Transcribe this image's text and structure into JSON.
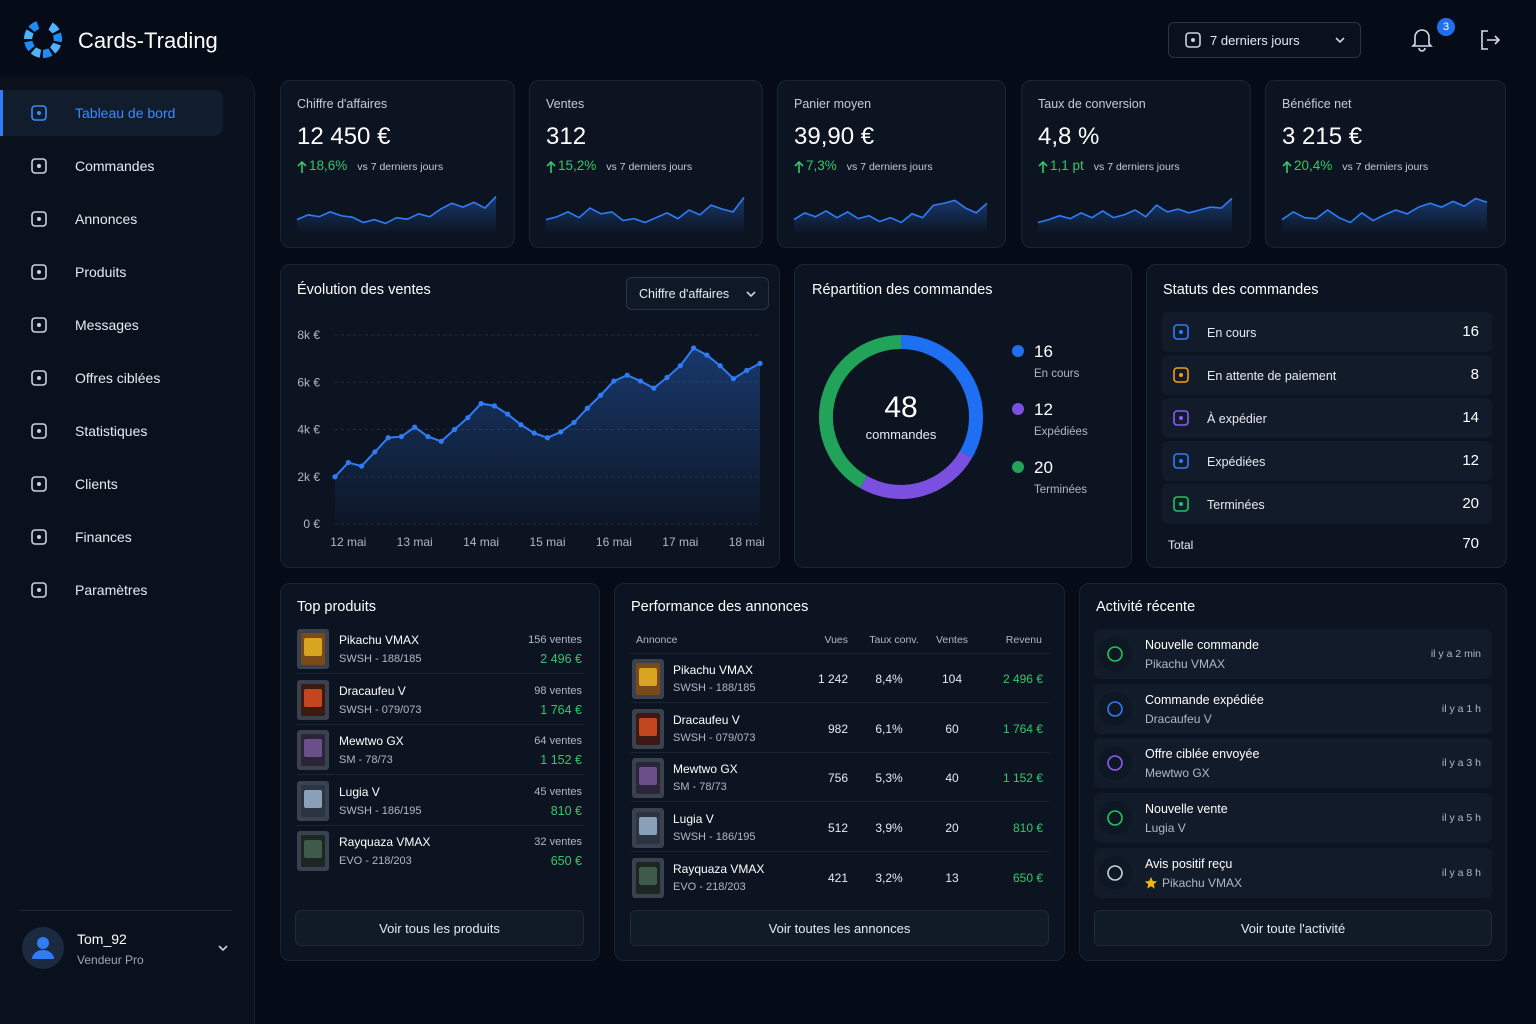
{
  "app": {
    "name": "Cards-Trading"
  },
  "header": {
    "period": "7 derniers jours",
    "notifications": 3
  },
  "nav": [
    "Tableau de bord",
    "Commandes",
    "Annonces",
    "Produits",
    "Messages",
    "Offres ciblées",
    "Statistiques",
    "Clients",
    "Finances",
    "Paramètres"
  ],
  "user": {
    "name": "Tom_92",
    "role": "Vendeur Pro"
  },
  "kpis": [
    {
      "label": "Chiffre d'affaires",
      "value": "12 450 €",
      "change": "18,6%",
      "compare": "vs 7 derniers jours",
      "chart_data": {
        "type": "line",
        "color": "#2f7cf6",
        "ylim": [
          0,
          10
        ],
        "values": [
          3,
          4,
          3.6,
          4.6,
          3.8,
          3.5,
          2.4,
          3,
          2.2,
          3.4,
          3.1,
          4.2,
          3.6,
          5.2,
          6.4,
          5.6,
          6.6,
          5.4,
          7.8
        ]
      }
    },
    {
      "label": "Ventes",
      "value": "312",
      "change": "15,2%",
      "compare": "vs 7 derniers jours",
      "chart_data": {
        "type": "line",
        "color": "#2f7cf6",
        "ylim": [
          0,
          10
        ],
        "values": [
          3,
          3.6,
          4.6,
          3.4,
          5.4,
          4.2,
          4.6,
          2.8,
          3.2,
          2.4,
          3.4,
          4.4,
          3.2,
          5,
          4,
          6,
          5.2,
          4.6,
          7.6
        ]
      }
    },
    {
      "label": "Panier moyen",
      "value": "39,90 €",
      "change": "7,3%",
      "compare": "vs 7 derniers jours",
      "chart_data": {
        "type": "line",
        "color": "#2f7cf6",
        "ylim": [
          0,
          10
        ],
        "values": [
          3,
          4.4,
          3.6,
          4.8,
          3.4,
          4.6,
          3.2,
          3.8,
          2.6,
          3.4,
          2.4,
          4.2,
          3.4,
          6,
          6.4,
          7,
          5.4,
          4.4,
          6.4
        ]
      }
    },
    {
      "label": "Taux de conversion",
      "value": "4,8 %",
      "change": "1,1 pt",
      "compare": "vs 7 derniers jours",
      "chart_data": {
        "type": "line",
        "color": "#2f7cf6",
        "ylim": [
          0,
          10
        ],
        "values": [
          2.4,
          3,
          3.8,
          3.2,
          4.4,
          3.4,
          4.8,
          3.4,
          4,
          5,
          3.6,
          6,
          4.6,
          5.2,
          4.4,
          5,
          5.6,
          5.4,
          7.4
        ]
      }
    },
    {
      "label": "Bénéfice net",
      "value": "3 215 €",
      "change": "20,4%",
      "compare": "vs 7 derniers jours",
      "chart_data": {
        "type": "line",
        "color": "#2f7cf6",
        "ylim": [
          0,
          10
        ],
        "values": [
          3,
          4.6,
          3.4,
          3.2,
          5,
          3.4,
          2.4,
          4.4,
          2.8,
          4,
          5,
          4.2,
          5.6,
          6.4,
          5.6,
          6.8,
          5.8,
          7.4,
          6.6
        ]
      }
    }
  ],
  "sales_card": {
    "title": "Évolution des ventes",
    "selector": "Chiffre d'affaires",
    "chart_data": {
      "type": "line",
      "color": "#2f7cf6",
      "categories": [
        null,
        "12 mai",
        null,
        null,
        null,
        null,
        "13 mai",
        null,
        null,
        null,
        null,
        "14 mai",
        null,
        null,
        null,
        null,
        "15 mai",
        null,
        null,
        null,
        null,
        "16 mai",
        null,
        null,
        null,
        null,
        "17 mai",
        null,
        null,
        null,
        null,
        "18 mai",
        null
      ],
      "values": [
        2000,
        2600,
        2450,
        3050,
        3650,
        3700,
        4100,
        3700,
        3500,
        4000,
        4500,
        5100,
        5000,
        4650,
        4200,
        3850,
        3650,
        3900,
        4300,
        4900,
        5450,
        6050,
        6300,
        6050,
        5750,
        6200,
        6700,
        7450,
        7150,
        6700,
        6150,
        6500,
        6800
      ],
      "ylim": [
        0,
        8000
      ],
      "yticks": [
        {
          "value": 0,
          "label": "0 €"
        },
        {
          "value": 2000,
          "label": "2k €"
        },
        {
          "value": 4000,
          "label": "4k €"
        },
        {
          "value": 6000,
          "label": "6k €"
        },
        {
          "value": 8000,
          "label": "8k €"
        }
      ],
      "grid": true
    }
  },
  "orders_split": {
    "title": "Répartition des commandes",
    "chart_data": {
      "type": "pie",
      "total": 48,
      "total_label": "commandes",
      "categories": [
        "En cours",
        "Expédiées",
        "Terminées"
      ],
      "values": [
        16,
        12,
        20
      ],
      "colors": [
        "#1e6ff2",
        "#7b4fe0",
        "#22a35a"
      ]
    }
  },
  "order_status": {
    "title": "Statuts des commandes",
    "items": [
      {
        "label": "En cours",
        "count": 16,
        "color": "#2f7cf6"
      },
      {
        "label": "En attente de paiement",
        "count": 8,
        "color": "#f59e0b"
      },
      {
        "label": "À expédier",
        "count": 14,
        "color": "#8b5cf6"
      },
      {
        "label": "Expédiées",
        "count": 12,
        "color": "#2f7cf6"
      },
      {
        "label": "Terminées",
        "count": 20,
        "color": "#22c55e"
      }
    ],
    "total_label": "Total",
    "total": 70
  },
  "top_products": {
    "title": "Top produits",
    "items": [
      {
        "name": "Pikachu VMAX",
        "set": "SWSH - 188/185",
        "sales": "156 ventes",
        "revenue": "2 496 €"
      },
      {
        "name": "Dracaufeu V",
        "set": "SWSH - 079/073",
        "sales": "98 ventes",
        "revenue": "1 764 €"
      },
      {
        "name": "Mewtwo GX",
        "set": "SM - 78/73",
        "sales": "64 ventes",
        "revenue": "1 152 €"
      },
      {
        "name": "Lugia V",
        "set": "SWSH - 186/195",
        "sales": "45 ventes",
        "revenue": "810 €"
      },
      {
        "name": "Rayquaza VMAX",
        "set": "EVO - 218/203",
        "sales": "32 ventes",
        "revenue": "650 €"
      }
    ],
    "button": "Voir tous les produits"
  },
  "listings": {
    "title": "Performance des annonces",
    "columns": [
      "Annonce",
      "Vues",
      "Taux conv.",
      "Ventes",
      "Revenu"
    ],
    "rows": [
      {
        "name": "Pikachu VMAX",
        "set": "SWSH - 188/185",
        "views": "1 242",
        "conv": "8,4%",
        "sales": "104",
        "revenue": "2 496 €"
      },
      {
        "name": "Dracaufeu V",
        "set": "SWSH - 079/073",
        "views": "982",
        "conv": "6,1%",
        "sales": "60",
        "revenue": "1 764 €"
      },
      {
        "name": "Mewtwo GX",
        "set": "SM - 78/73",
        "views": "756",
        "conv": "5,3%",
        "sales": "40",
        "revenue": "1 152 €"
      },
      {
        "name": "Lugia V",
        "set": "SWSH - 186/195",
        "views": "512",
        "conv": "3,9%",
        "sales": "20",
        "revenue": "810 €"
      },
      {
        "name": "Rayquaza VMAX",
        "set": "EVO - 218/203",
        "views": "421",
        "conv": "3,2%",
        "sales": "13",
        "revenue": "650 €"
      }
    ],
    "button": "Voir toutes les annonces"
  },
  "activity": {
    "title": "Activité récente",
    "items": [
      {
        "title": "Nouvelle commande",
        "subtitle": "Pikachu VMAX",
        "time": "il y a 2 min"
      },
      {
        "title": "Commande expédiée",
        "subtitle": "Dracaufeu V",
        "time": "il y a 1 h"
      },
      {
        "title": "Offre ciblée envoyée",
        "subtitle": "Mewtwo GX",
        "time": "il y a 3 h"
      },
      {
        "title": "Nouvelle vente",
        "subtitle": "Lugia V",
        "time": "il y a 5 h"
      },
      {
        "title": "Avis positif reçu",
        "subtitle": "Pikachu VMAX",
        "time": "il y a 8 h"
      }
    ],
    "button": "Voir toute l'activité"
  }
}
